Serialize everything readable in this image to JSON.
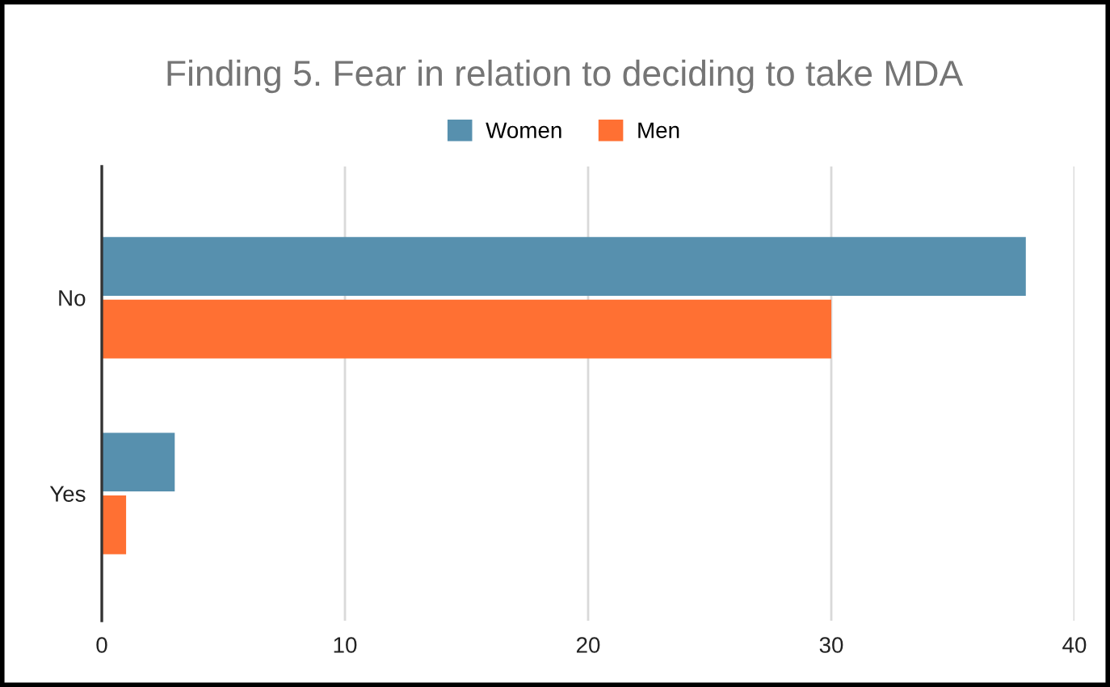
{
  "chart_data": {
    "type": "bar",
    "orientation": "horizontal",
    "title": "Finding 5. Fear in relation to deciding to take MDA",
    "categories": [
      "No",
      "Yes"
    ],
    "series": [
      {
        "name": "Women",
        "color": "#5790ae",
        "values": [
          38,
          3
        ]
      },
      {
        "name": "Men",
        "color": "#ff7033",
        "values": [
          30,
          1
        ]
      }
    ],
    "xlim": [
      0,
      40
    ],
    "xticks": [
      0,
      10,
      20,
      30,
      40
    ],
    "grid": "x",
    "legend": "top"
  }
}
